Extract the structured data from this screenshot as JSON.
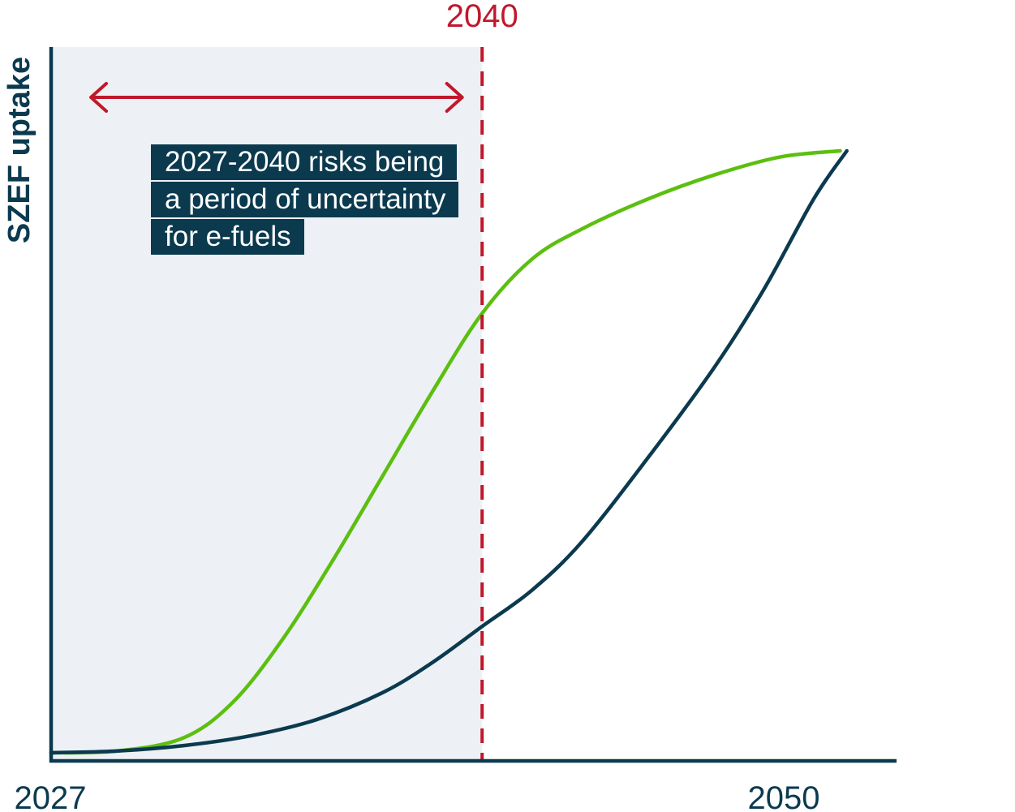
{
  "chart_data": {
    "type": "line",
    "title": "",
    "xlabel": "",
    "ylabel": "SZEF uptake",
    "x_ticks": [
      "2027",
      "2050"
    ],
    "xlim": [
      2027,
      2052.5
    ],
    "ylim": [
      0,
      1
    ],
    "marker": {
      "label": "2040",
      "x": 2040,
      "color": "#c0182b"
    },
    "shaded_region": {
      "from": 2027,
      "to": 2040,
      "color": "#edf1f5"
    },
    "range_arrow": {
      "from": 2028.2,
      "to": 2039.4,
      "color": "#c0182b"
    },
    "annotation": [
      "2027-2040 risks being",
      "a period of uncertainty",
      "for e-fuels"
    ],
    "series": [
      {
        "color": "#5cbf10",
        "x": [
          2027,
          2029,
          2031,
          2032.5,
          2034,
          2035.5,
          2037,
          2038.5,
          2040,
          2041.5,
          2043,
          2045,
          2047,
          2049,
          2050.8
        ],
        "y": [
          0.0,
          0.003,
          0.025,
          0.085,
          0.19,
          0.32,
          0.46,
          0.6,
          0.73,
          0.82,
          0.87,
          0.92,
          0.96,
          0.99,
          1.0
        ]
      },
      {
        "color": "#0b3a4f",
        "x": [
          2027,
          2029,
          2031,
          2033,
          2035,
          2037,
          2038.5,
          2040,
          2041.5,
          2043,
          2045,
          2047,
          2048.5,
          2050,
          2051
        ],
        "y": [
          0.0,
          0.003,
          0.012,
          0.028,
          0.055,
          0.1,
          0.15,
          0.21,
          0.27,
          0.35,
          0.49,
          0.64,
          0.77,
          0.92,
          1.0
        ]
      }
    ]
  }
}
